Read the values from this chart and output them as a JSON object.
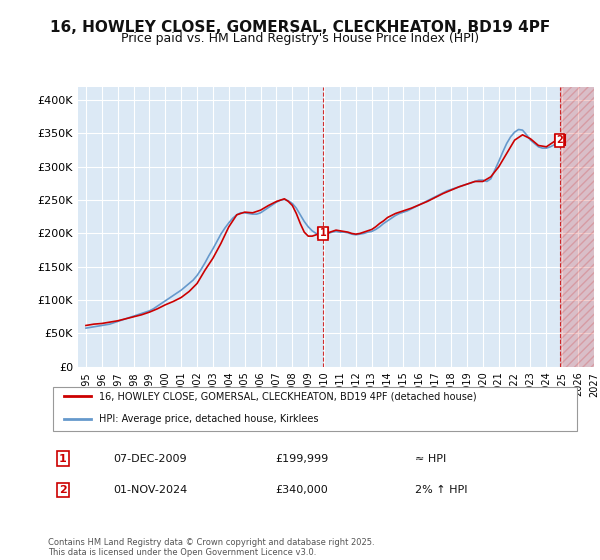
{
  "title": "16, HOWLEY CLOSE, GOMERSAL, CLECKHEATON, BD19 4PF",
  "subtitle": "Price paid vs. HM Land Registry's House Price Index (HPI)",
  "title_fontsize": 11,
  "subtitle_fontsize": 9,
  "background_color": "#ffffff",
  "plot_bg_color": "#dce9f5",
  "grid_color": "#ffffff",
  "ylim": [
    0,
    420000
  ],
  "yticks": [
    0,
    50000,
    100000,
    150000,
    200000,
    250000,
    300000,
    350000,
    400000
  ],
  "ytick_labels": [
    "£0",
    "£50K",
    "£100K",
    "£150K",
    "£200K",
    "£250K",
    "£300K",
    "£350K",
    "£400K"
  ],
  "xlabel_start_year": 1995,
  "xlabel_end_year": 2027,
  "hpi_color": "#6699cc",
  "price_color": "#cc0000",
  "marker1_date": 2009.92,
  "marker1_price": 199999,
  "marker1_label": "1",
  "marker2_date": 2024.83,
  "marker2_price": 340000,
  "marker2_label": "2",
  "legend_label1": "16, HOWLEY CLOSE, GOMERSAL, CLECKHEATON, BD19 4PF (detached house)",
  "legend_label2": "HPI: Average price, detached house, Kirklees",
  "annotation1_num": "1",
  "annotation1_date": "07-DEC-2009",
  "annotation1_price": "£199,999",
  "annotation1_hpi": "≈ HPI",
  "annotation2_num": "2",
  "annotation2_date": "01-NOV-2024",
  "annotation2_price": "£340,000",
  "annotation2_hpi": "2% ↑ HPI",
  "footer": "Contains HM Land Registry data © Crown copyright and database right 2025.\nThis data is licensed under the Open Government Licence v3.0.",
  "hpi_data_x": [
    1995.0,
    1995.25,
    1995.5,
    1995.75,
    1996.0,
    1996.25,
    1996.5,
    1996.75,
    1997.0,
    1997.25,
    1997.5,
    1997.75,
    1998.0,
    1998.25,
    1998.5,
    1998.75,
    1999.0,
    1999.25,
    1999.5,
    1999.75,
    2000.0,
    2000.25,
    2000.5,
    2000.75,
    2001.0,
    2001.25,
    2001.5,
    2001.75,
    2002.0,
    2002.25,
    2002.5,
    2002.75,
    2003.0,
    2003.25,
    2003.5,
    2003.75,
    2004.0,
    2004.25,
    2004.5,
    2004.75,
    2005.0,
    2005.25,
    2005.5,
    2005.75,
    2006.0,
    2006.25,
    2006.5,
    2006.75,
    2007.0,
    2007.25,
    2007.5,
    2007.75,
    2008.0,
    2008.25,
    2008.5,
    2008.75,
    2009.0,
    2009.25,
    2009.5,
    2009.75,
    2010.0,
    2010.25,
    2010.5,
    2010.75,
    2011.0,
    2011.25,
    2011.5,
    2011.75,
    2012.0,
    2012.25,
    2012.5,
    2012.75,
    2013.0,
    2013.25,
    2013.5,
    2013.75,
    2014.0,
    2014.25,
    2014.5,
    2014.75,
    2015.0,
    2015.25,
    2015.5,
    2015.75,
    2016.0,
    2016.25,
    2016.5,
    2016.75,
    2017.0,
    2017.25,
    2017.5,
    2017.75,
    2018.0,
    2018.25,
    2018.5,
    2018.75,
    2019.0,
    2019.25,
    2019.5,
    2019.75,
    2020.0,
    2020.25,
    2020.5,
    2020.75,
    2021.0,
    2021.25,
    2021.5,
    2021.75,
    2022.0,
    2022.25,
    2022.5,
    2022.75,
    2023.0,
    2023.25,
    2023.5,
    2023.75,
    2024.0,
    2024.25,
    2024.5,
    2024.75
  ],
  "hpi_data_y": [
    58000,
    59000,
    60000,
    61000,
    62000,
    63000,
    64000,
    66000,
    68000,
    70000,
    72000,
    74000,
    76000,
    78000,
    80000,
    82000,
    84000,
    87000,
    91000,
    95000,
    99000,
    103000,
    107000,
    111000,
    115000,
    120000,
    125000,
    130000,
    137000,
    146000,
    156000,
    167000,
    177000,
    188000,
    199000,
    208000,
    216000,
    223000,
    228000,
    231000,
    231000,
    230000,
    229000,
    229000,
    231000,
    235000,
    239000,
    243000,
    247000,
    250000,
    251000,
    249000,
    245000,
    238000,
    228000,
    218000,
    210000,
    204000,
    200000,
    198000,
    198000,
    200000,
    202000,
    203000,
    202000,
    202000,
    201000,
    199000,
    198000,
    199000,
    200000,
    202000,
    203000,
    206000,
    210000,
    215000,
    219000,
    223000,
    227000,
    230000,
    232000,
    234000,
    237000,
    240000,
    243000,
    246000,
    249000,
    252000,
    255000,
    258000,
    261000,
    264000,
    266000,
    268000,
    270000,
    272000,
    274000,
    276000,
    278000,
    280000,
    280000,
    278000,
    282000,
    295000,
    308000,
    322000,
    335000,
    345000,
    352000,
    356000,
    355000,
    348000,
    340000,
    335000,
    330000,
    328000,
    328000,
    330000,
    333000,
    336000
  ],
  "price_data_x": [
    1995.0,
    1995.5,
    1996.0,
    1996.5,
    1997.0,
    1997.5,
    1998.0,
    1998.5,
    1999.0,
    1999.5,
    2000.0,
    2000.5,
    2001.0,
    2001.5,
    2002.0,
    2002.5,
    2003.0,
    2003.5,
    2004.0,
    2004.5,
    2005.0,
    2005.5,
    2006.0,
    2006.5,
    2007.0,
    2007.5,
    2007.75,
    2008.0,
    2008.25,
    2008.5,
    2008.75,
    2009.0,
    2009.25,
    2009.5,
    2009.75,
    2010.0,
    2010.25,
    2010.5,
    2010.75,
    2011.0,
    2011.25,
    2011.5,
    2011.75,
    2012.0,
    2012.25,
    2012.5,
    2013.0,
    2013.25,
    2013.5,
    2013.75,
    2014.0,
    2014.5,
    2015.0,
    2015.5,
    2016.0,
    2016.5,
    2017.0,
    2017.5,
    2018.0,
    2018.5,
    2019.0,
    2019.5,
    2020.0,
    2020.5,
    2021.0,
    2021.5,
    2022.0,
    2022.5,
    2023.0,
    2023.5,
    2024.0,
    2024.5,
    2024.83
  ],
  "price_data_y": [
    62000,
    64000,
    65000,
    67000,
    69000,
    72000,
    75000,
    78000,
    82000,
    87000,
    93000,
    98000,
    104000,
    113000,
    125000,
    145000,
    163000,
    185000,
    210000,
    228000,
    232000,
    231000,
    235000,
    242000,
    248000,
    252000,
    248000,
    242000,
    230000,
    215000,
    202000,
    196000,
    196000,
    198000,
    200000,
    199999,
    201000,
    203000,
    205000,
    204000,
    203000,
    202000,
    200000,
    199000,
    200000,
    202000,
    206000,
    210000,
    215000,
    219000,
    224000,
    230000,
    234000,
    238000,
    243000,
    248000,
    254000,
    260000,
    265000,
    270000,
    274000,
    278000,
    278000,
    285000,
    300000,
    320000,
    340000,
    348000,
    342000,
    332000,
    330000,
    338000,
    340000
  ]
}
